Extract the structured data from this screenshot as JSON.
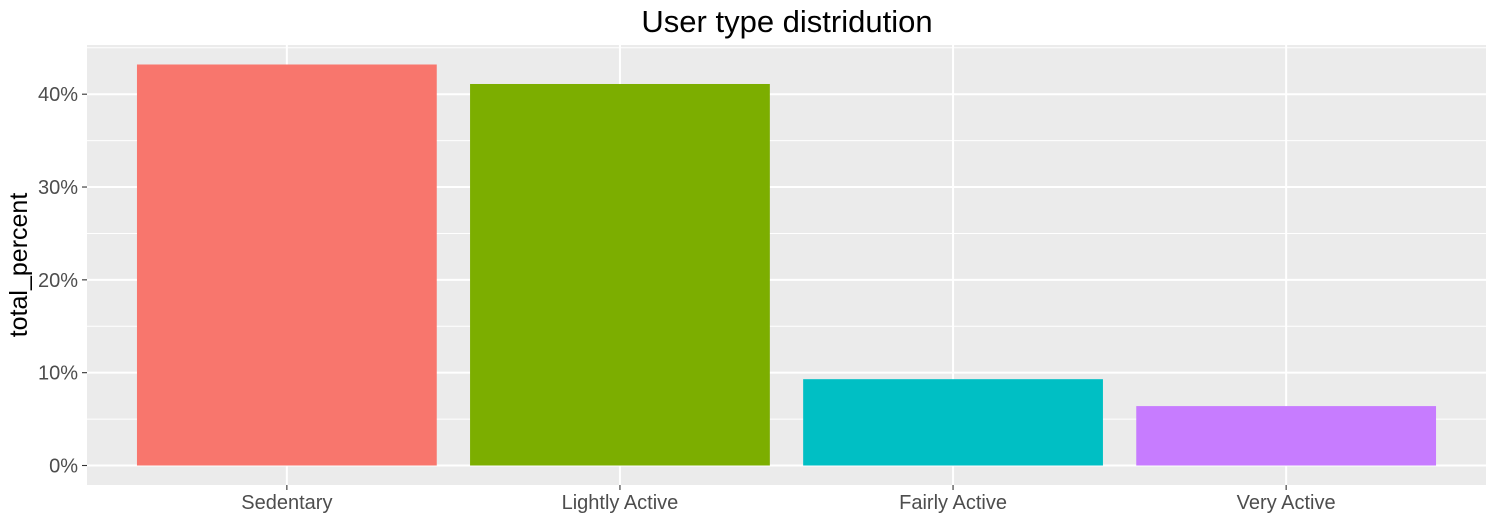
{
  "chart_data": {
    "type": "bar",
    "title": "User type distridution",
    "xlabel": "",
    "ylabel": "total_percent",
    "categories": [
      "Sedentary",
      "Lightly Active",
      "Fairly Active",
      "Very Active"
    ],
    "values": [
      43.2,
      41.1,
      9.3,
      6.4
    ],
    "colors": [
      "#F8766D",
      "#7CAE00",
      "#00BFC4",
      "#C77CFF"
    ],
    "yticks": [
      0,
      10,
      20,
      30,
      40
    ],
    "ytick_labels": [
      "0%",
      "10%",
      "20%",
      "30%",
      "40%"
    ],
    "ylim": [
      -2.1,
      45.3
    ],
    "grid": true,
    "panel_background": "#EBEBEB",
    "gridline_color": "#FFFFFF",
    "tick_color": "#333333",
    "legend": "none"
  }
}
